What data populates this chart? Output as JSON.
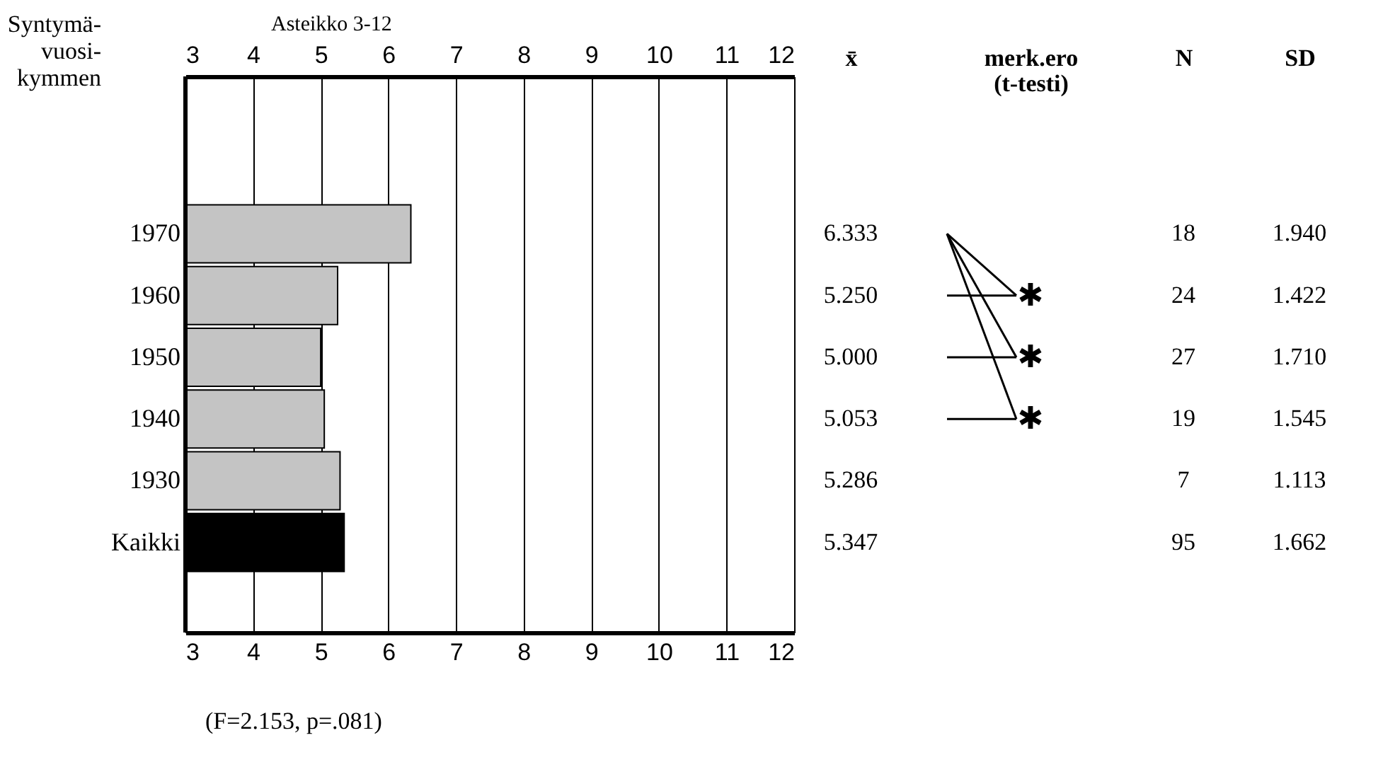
{
  "chart_data": {
    "type": "bar",
    "orientation": "horizontal",
    "x2label": "Asteikko 3-12",
    "ylabel": "Syntymä-vuosi-kymmen",
    "categories": [
      "1970",
      "1960",
      "1950",
      "1940",
      "1930",
      "Kaikki"
    ],
    "values": [
      6.333,
      5.25,
      5.0,
      5.053,
      5.286,
      5.347
    ],
    "colors": [
      "#c4c4c4",
      "#c4c4c4",
      "#c4c4c4",
      "#c4c4c4",
      "#c4c4c4",
      "#000000"
    ],
    "value_labels": [
      "6.333",
      "5.250",
      "5.000",
      "5.053",
      "5.286",
      "5.347"
    ],
    "xlim": [
      3,
      12
    ],
    "xticks": [
      3,
      4,
      5,
      6,
      7,
      8,
      9,
      10,
      11,
      12
    ],
    "x2lim": [
      3,
      12
    ],
    "x2ticks": [
      3,
      4,
      5,
      6,
      7,
      8,
      9,
      10,
      11,
      12
    ],
    "grid": "x",
    "annotations": [
      "x̄",
      "merk.ero (t-testi)",
      "N",
      "SD",
      "(F=2.153, p=.081)",
      "✱",
      "✱",
      "✱",
      "18",
      "1.940",
      "24",
      "1.422",
      "27",
      "1.710",
      "19",
      "1.545",
      "7",
      "1.113",
      "95",
      "1.662"
    ]
  }
}
